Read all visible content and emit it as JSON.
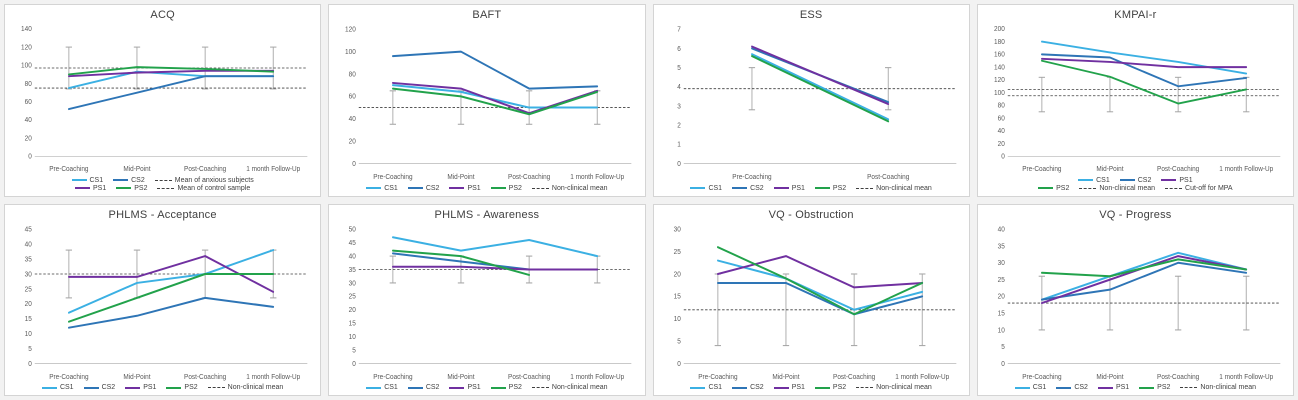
{
  "colors": {
    "cs1": "#3bb0e3",
    "cs2": "#2e75b6",
    "ps1": "#7030a0",
    "ps2": "#22a24b",
    "ref": "#3f3f3f",
    "error": "#a6a6a6"
  },
  "chart_data": [
    {
      "type": "line",
      "title": "ACQ",
      "xlabel": "",
      "ylabel": "",
      "ymin": 0,
      "ymax": 140,
      "ystep": 20,
      "categories": [
        "Pre-Coaching",
        "Mid-Point",
        "Post-Coaching",
        "1 month Follow-Up"
      ],
      "series": [
        {
          "name": "CS1",
          "color": "#3bb0e3",
          "values": [
            75,
            93,
            88,
            88
          ]
        },
        {
          "name": "CS2",
          "color": "#2e75b6",
          "values": [
            52,
            70,
            88,
            88
          ]
        },
        {
          "name": "PS1",
          "color": "#7030a0",
          "values": [
            88,
            92,
            94,
            94
          ]
        },
        {
          "name": "PS2",
          "color": "#22a24b",
          "values": [
            90,
            98,
            96,
            93
          ]
        }
      ],
      "ref_lines": [
        {
          "label": "Mean of anxious subjects",
          "value": 97
        },
        {
          "label": "Mean of control sample",
          "value": 75
        }
      ],
      "error_bar": {
        "center": 97,
        "half": 23
      },
      "legend_rows": [
        [
          "CS1",
          "CS2",
          "Mean of anxious subjects"
        ],
        [
          "PS1",
          "PS2",
          "Mean of control sample"
        ]
      ]
    },
    {
      "type": "line",
      "title": "BAFT",
      "xlabel": "",
      "ylabel": "",
      "ymin": 0,
      "ymax": 120,
      "ystep": 20,
      "categories": [
        "Pre-Coaching",
        "Mid-Point",
        "Post-Coaching",
        "1 month Follow-Up"
      ],
      "series": [
        {
          "name": "CS1",
          "color": "#3bb0e3",
          "values": [
            70,
            64,
            50,
            50
          ]
        },
        {
          "name": "CS2",
          "color": "#2e75b6",
          "values": [
            96,
            100,
            67,
            69
          ]
        },
        {
          "name": "PS1",
          "color": "#7030a0",
          "values": [
            72,
            67,
            45,
            65
          ]
        },
        {
          "name": "PS2",
          "color": "#22a24b",
          "values": [
            67,
            60,
            44,
            64
          ]
        }
      ],
      "ref_lines": [
        {
          "label": "Non-clinical mean",
          "value": 50
        }
      ],
      "error_bar": {
        "center": 50,
        "half": 15
      },
      "legend_rows": [
        [
          "CS1",
          "CS2",
          "PS1",
          "PS2",
          "Non-clinical mean"
        ]
      ]
    },
    {
      "type": "line",
      "title": "ESS",
      "xlabel": "",
      "ylabel": "",
      "ymin": 0,
      "ymax": 7,
      "ystep": 1,
      "categories": [
        "Pre-Coaching",
        "Post-Coaching"
      ],
      "series": [
        {
          "name": "CS1",
          "color": "#3bb0e3",
          "values": [
            5.7,
            2.3
          ]
        },
        {
          "name": "CS2",
          "color": "#2e75b6",
          "values": [
            6.0,
            3.2
          ]
        },
        {
          "name": "PS1",
          "color": "#7030a0",
          "values": [
            6.1,
            3.1
          ]
        },
        {
          "name": "PS2",
          "color": "#22a24b",
          "values": [
            5.6,
            2.2
          ]
        }
      ],
      "ref_lines": [
        {
          "label": "Non-clinical mean",
          "value": 3.9
        }
      ],
      "error_bar": {
        "center": 3.9,
        "half": 1.1
      },
      "legend_rows": [
        [
          "CS1",
          "CS2",
          "PS1",
          "PS2",
          "Non-clinical mean"
        ]
      ]
    },
    {
      "type": "line",
      "title": "KMPAI-r",
      "xlabel": "",
      "ylabel": "",
      "ymin": 0,
      "ymax": 200,
      "ystep": 20,
      "categories": [
        "Pre-Coaching",
        "Mid-Point",
        "Post-Coaching",
        "1 month Follow-Up"
      ],
      "series": [
        {
          "name": "CS1",
          "color": "#3bb0e3",
          "values": [
            180,
            163,
            148,
            130
          ]
        },
        {
          "name": "CS2",
          "color": "#2e75b6",
          "values": [
            160,
            155,
            110,
            123
          ]
        },
        {
          "name": "PS1",
          "color": "#7030a0",
          "values": [
            153,
            148,
            140,
            140
          ]
        },
        {
          "name": "PS2",
          "color": "#22a24b",
          "values": [
            150,
            125,
            83,
            105
          ]
        }
      ],
      "ref_lines": [
        {
          "label": "Non-clinical mean",
          "value": 105
        },
        {
          "label": "Cut-off for MPA",
          "value": 95
        }
      ],
      "error_bar": {
        "center": 97,
        "half": 27
      },
      "legend_rows": [
        [
          "CS1",
          "CS2",
          "PS1"
        ],
        [
          "PS2",
          "Non-clinical mean",
          "Cut-off for MPA"
        ]
      ]
    },
    {
      "type": "line",
      "title": "PHLMS - Acceptance",
      "xlabel": "",
      "ylabel": "",
      "ymin": 0,
      "ymax": 45,
      "ystep": 5,
      "categories": [
        "Pre-Coaching",
        "Mid-Point",
        "Post-Coaching",
        "1 month Follow-Up"
      ],
      "series": [
        {
          "name": "CS1",
          "color": "#3bb0e3",
          "values": [
            17,
            27,
            30,
            38
          ]
        },
        {
          "name": "CS2",
          "color": "#2e75b6",
          "values": [
            12,
            16,
            22,
            19
          ]
        },
        {
          "name": "PS1",
          "color": "#7030a0",
          "values": [
            29,
            29,
            36,
            24
          ]
        },
        {
          "name": "PS2",
          "color": "#22a24b",
          "values": [
            14,
            22,
            30,
            30
          ]
        }
      ],
      "ref_lines": [
        {
          "label": "Non-clinical mean",
          "value": 30
        }
      ],
      "error_bar": {
        "center": 30,
        "half": 8
      },
      "legend_rows": [
        [
          "CS1",
          "CS2",
          "PS1",
          "PS2",
          "Non-clinical mean"
        ]
      ]
    },
    {
      "type": "line",
      "title": "PHLMS - Awareness",
      "xlabel": "",
      "ylabel": "",
      "ymin": 0,
      "ymax": 50,
      "ystep": 5,
      "categories": [
        "Pre-Coaching",
        "Mid-Point",
        "Post-Coaching",
        "1 month Follow-Up"
      ],
      "series": [
        {
          "name": "CS1",
          "color": "#3bb0e3",
          "values": [
            47,
            42,
            46,
            40
          ]
        },
        {
          "name": "CS2",
          "color": "#2e75b6",
          "values": [
            41,
            38,
            35,
            35
          ]
        },
        {
          "name": "PS1",
          "color": "#7030a0",
          "values": [
            36,
            36,
            35,
            35
          ]
        },
        {
          "name": "PS2",
          "color": "#22a24b",
          "values": [
            42,
            40,
            33,
            null
          ]
        }
      ],
      "ref_lines": [
        {
          "label": "Non-clinical mean",
          "value": 35
        }
      ],
      "error_bar": {
        "center": 35,
        "half": 5
      },
      "legend_rows": [
        [
          "CS1",
          "CS2",
          "PS1",
          "PS2",
          "Non-clinical mean"
        ]
      ]
    },
    {
      "type": "line",
      "title": "VQ - Obstruction",
      "xlabel": "",
      "ylabel": "",
      "ymin": 0,
      "ymax": 30,
      "ystep": 5,
      "categories": [
        "Pre-Coaching",
        "Mid-Point",
        "Post-Coaching",
        "1 month Follow-Up"
      ],
      "series": [
        {
          "name": "CS1",
          "color": "#3bb0e3",
          "values": [
            23,
            19,
            12,
            16
          ]
        },
        {
          "name": "CS2",
          "color": "#2e75b6",
          "values": [
            18,
            18,
            11,
            15
          ]
        },
        {
          "name": "PS1",
          "color": "#7030a0",
          "values": [
            20,
            24,
            17,
            18
          ]
        },
        {
          "name": "PS2",
          "color": "#22a24b",
          "values": [
            26,
            19,
            11,
            18
          ]
        }
      ],
      "ref_lines": [
        {
          "label": "Non-clinical mean",
          "value": 12
        }
      ],
      "error_bar": {
        "center": 12,
        "half": 8
      },
      "legend_rows": [
        [
          "CS1",
          "CS2",
          "PS1",
          "PS2",
          "Non-clinical mean"
        ]
      ]
    },
    {
      "type": "line",
      "title": "VQ - Progress",
      "xlabel": "",
      "ylabel": "",
      "ymin": 0,
      "ymax": 40,
      "ystep": 5,
      "categories": [
        "Pre-Coaching",
        "Mid-Point",
        "Post-Coaching",
        "1 month Follow-Up"
      ],
      "series": [
        {
          "name": "CS1",
          "color": "#3bb0e3",
          "values": [
            19,
            26,
            33,
            28
          ]
        },
        {
          "name": "CS2",
          "color": "#2e75b6",
          "values": [
            19,
            22,
            30,
            27
          ]
        },
        {
          "name": "PS1",
          "color": "#7030a0",
          "values": [
            18,
            25,
            32,
            28
          ]
        },
        {
          "name": "PS2",
          "color": "#22a24b",
          "values": [
            27,
            26,
            31,
            28
          ]
        }
      ],
      "ref_lines": [
        {
          "label": "Non-clinical mean",
          "value": 18
        }
      ],
      "error_bar": {
        "center": 18,
        "half": 8
      },
      "legend_rows": [
        [
          "CS1",
          "CS2",
          "PS1",
          "PS2",
          "Non-clinical mean"
        ]
      ]
    }
  ]
}
